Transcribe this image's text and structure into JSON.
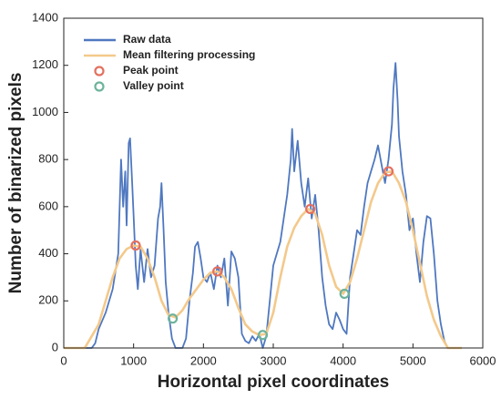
{
  "chart_data": {
    "type": "line",
    "xlabel": "Horizontal pixel coordinates",
    "ylabel": "Number of binarized pixels",
    "xlim": [
      0,
      6000
    ],
    "xticks": [
      0,
      1000,
      2000,
      3000,
      4000,
      5000,
      6000
    ],
    "ylim": [
      0,
      1400
    ],
    "yticks": [
      0,
      200,
      400,
      600,
      800,
      1000,
      1200,
      1400
    ],
    "grid": false,
    "legend": "upper left",
    "series": [
      {
        "name": "Raw data",
        "type": "line",
        "color": "#4f78c0",
        "x": [
          0,
          400,
          450,
          500,
          600,
          700,
          780,
          820,
          850,
          880,
          900,
          930,
          950,
          980,
          1000,
          1030,
          1060,
          1100,
          1150,
          1200,
          1250,
          1300,
          1350,
          1380,
          1400,
          1430,
          1460,
          1500,
          1550,
          1600,
          1700,
          1750,
          1800,
          1850,
          1880,
          1920,
          1960,
          2000,
          2050,
          2100,
          2150,
          2200,
          2250,
          2300,
          2350,
          2400,
          2450,
          2500,
          2550,
          2600,
          2650,
          2700,
          2750,
          2800,
          2850,
          2900,
          2950,
          3000,
          3050,
          3100,
          3150,
          3200,
          3250,
          3270,
          3300,
          3350,
          3400,
          3450,
          3500,
          3550,
          3600,
          3650,
          3700,
          3750,
          3800,
          3850,
          3900,
          3950,
          4000,
          4050,
          4100,
          4150,
          4200,
          4250,
          4300,
          4350,
          4400,
          4450,
          4500,
          4550,
          4600,
          4650,
          4700,
          4720,
          4750,
          4780,
          4800,
          4850,
          4900,
          4950,
          5000,
          5050,
          5100,
          5150,
          5200,
          5250,
          5300,
          5350,
          5400,
          5450,
          5500,
          5600
        ],
        "values": [
          0,
          0,
          20,
          80,
          150,
          250,
          400,
          800,
          600,
          750,
          520,
          870,
          890,
          700,
          560,
          350,
          250,
          420,
          280,
          420,
          300,
          350,
          550,
          600,
          700,
          500,
          280,
          150,
          40,
          0,
          0,
          40,
          200,
          320,
          430,
          450,
          380,
          300,
          280,
          320,
          250,
          350,
          300,
          380,
          180,
          410,
          380,
          300,
          60,
          30,
          20,
          50,
          30,
          60,
          0,
          50,
          200,
          350,
          400,
          450,
          550,
          650,
          800,
          930,
          750,
          880,
          700,
          600,
          720,
          550,
          650,
          500,
          300,
          180,
          100,
          80,
          150,
          120,
          80,
          60,
          300,
          400,
          500,
          480,
          600,
          700,
          750,
          800,
          860,
          780,
          700,
          800,
          950,
          1100,
          1210,
          1050,
          900,
          750,
          650,
          500,
          550,
          400,
          280,
          450,
          560,
          550,
          400,
          200,
          100,
          30,
          0,
          0
        ]
      },
      {
        "name": "Mean filtering processing",
        "type": "line",
        "color": "#f3c98b",
        "x": [
          0,
          300,
          400,
          500,
          600,
          700,
          800,
          900,
          1000,
          1100,
          1200,
          1300,
          1400,
          1500,
          1600,
          1700,
          1800,
          1900,
          2000,
          2100,
          2200,
          2300,
          2400,
          2500,
          2600,
          2700,
          2800,
          2900,
          3000,
          3100,
          3200,
          3300,
          3400,
          3500,
          3600,
          3700,
          3800,
          3900,
          4000,
          4100,
          4200,
          4300,
          4400,
          4500,
          4600,
          4700,
          4800,
          4900,
          5000,
          5100,
          5200,
          5300,
          5400,
          5500,
          5700
        ],
        "values": [
          0,
          0,
          50,
          100,
          200,
          300,
          380,
          420,
          435,
          430,
          380,
          300,
          200,
          140,
          130,
          160,
          210,
          250,
          290,
          320,
          325,
          300,
          250,
          170,
          100,
          70,
          55,
          60,
          150,
          300,
          430,
          510,
          560,
          590,
          570,
          480,
          350,
          260,
          230,
          280,
          380,
          500,
          620,
          700,
          745,
          750,
          700,
          620,
          500,
          360,
          220,
          120,
          50,
          0,
          0
        ]
      },
      {
        "name": "Peak point",
        "type": "scatter",
        "color": "#e4705f",
        "x": [
          1030,
          2200,
          3530,
          4650
        ],
        "values": [
          435,
          325,
          590,
          750
        ]
      },
      {
        "name": "Valley point",
        "type": "scatter",
        "color": "#6db39c",
        "x": [
          1560,
          2850,
          4020
        ],
        "values": [
          125,
          55,
          230
        ]
      }
    ]
  }
}
